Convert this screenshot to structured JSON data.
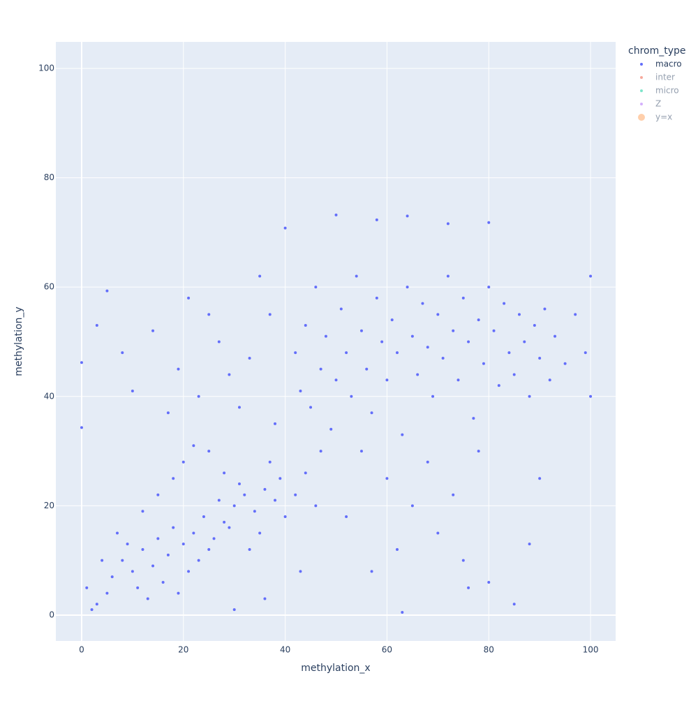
{
  "chart_data": {
    "type": "scatter",
    "x_label": "methylation_x",
    "y_label": "methylation_y",
    "legend_title": "chrom_type",
    "xlim": [
      -5.07,
      104.93
    ],
    "ylim": [
      -4.73,
      104.85
    ],
    "xticks": [
      0,
      20,
      40,
      60,
      80,
      100
    ],
    "yticks": [
      0,
      20,
      40,
      60,
      80,
      100
    ],
    "grid": true,
    "legend": "right",
    "series": [
      {
        "name": "macro",
        "color": "#636efa",
        "visible": true,
        "x": [
          8,
          10,
          12,
          14,
          15,
          17,
          18,
          20,
          22,
          24,
          26,
          28,
          30,
          32,
          34,
          36,
          38,
          11,
          13,
          16,
          19,
          21,
          23,
          25,
          27,
          29,
          9,
          6,
          5,
          4,
          3,
          7,
          12,
          15,
          18,
          20,
          22,
          25,
          28,
          31,
          33,
          35,
          37,
          39,
          40,
          42,
          44,
          46,
          2,
          1,
          0,
          0,
          5,
          3,
          8,
          10,
          14,
          17,
          19,
          21,
          23,
          25,
          27,
          29,
          31,
          33,
          35,
          37,
          38,
          40,
          42,
          43,
          44,
          45,
          46,
          47,
          48,
          49,
          50,
          50,
          51,
          52,
          53,
          54,
          55,
          56,
          57,
          58,
          59,
          60,
          61,
          62,
          63,
          64,
          65,
          66,
          67,
          68,
          69,
          70,
          71,
          72,
          73,
          74,
          75,
          76,
          77,
          78,
          79,
          80,
          81,
          82,
          83,
          84,
          85,
          86,
          87,
          88,
          89,
          90,
          91,
          92,
          93,
          95,
          97,
          99,
          100,
          100,
          64,
          58,
          72,
          80,
          55,
          60,
          65,
          70,
          75,
          80,
          85,
          62,
          52,
          57,
          68,
          73,
          78,
          90,
          88,
          47,
          43,
          36,
          30,
          63,
          76
        ],
        "values": [
          10,
          8,
          12,
          9,
          14,
          11,
          16,
          13,
          15,
          18,
          14,
          17,
          20,
          22,
          19,
          23,
          21,
          5,
          3,
          6,
          4,
          8,
          10,
          12,
          21,
          16,
          13,
          7,
          4,
          10,
          2,
          15,
          19,
          22,
          25,
          28,
          31,
          30,
          26,
          24,
          12,
          15,
          28,
          25,
          18,
          22,
          26,
          20,
          1,
          5,
          46.2,
          34.3,
          59.3,
          53,
          48,
          41,
          52,
          37,
          45,
          58,
          40,
          55,
          50,
          44,
          38,
          47,
          62,
          55,
          35,
          70.8,
          48,
          41,
          53,
          38,
          60,
          45,
          51,
          34,
          73.2,
          43,
          56,
          48,
          40,
          62,
          52,
          45,
          37,
          58,
          50,
          43,
          54,
          48,
          33,
          60,
          51,
          44,
          57,
          49,
          40,
          55,
          47,
          62,
          52,
          43,
          58,
          50,
          36,
          54,
          46,
          60,
          52,
          42,
          57,
          48,
          44,
          55,
          50,
          40,
          53,
          47,
          56,
          43,
          51,
          46,
          55,
          48,
          62,
          40,
          73,
          72.3,
          71.6,
          71.8,
          30,
          25,
          20,
          15,
          10,
          6,
          2,
          12,
          18,
          8,
          28,
          22,
          30,
          25,
          13,
          30,
          8,
          3,
          1,
          0.5,
          5
        ]
      },
      {
        "name": "inter",
        "color": "#EF553B",
        "visible": false
      },
      {
        "name": "micro",
        "color": "#00cc96",
        "visible": false
      },
      {
        "name": "Z",
        "color": "#ab63fa",
        "visible": false
      },
      {
        "name": "y=x",
        "color": "#FFA15A",
        "visible": false
      }
    ]
  }
}
